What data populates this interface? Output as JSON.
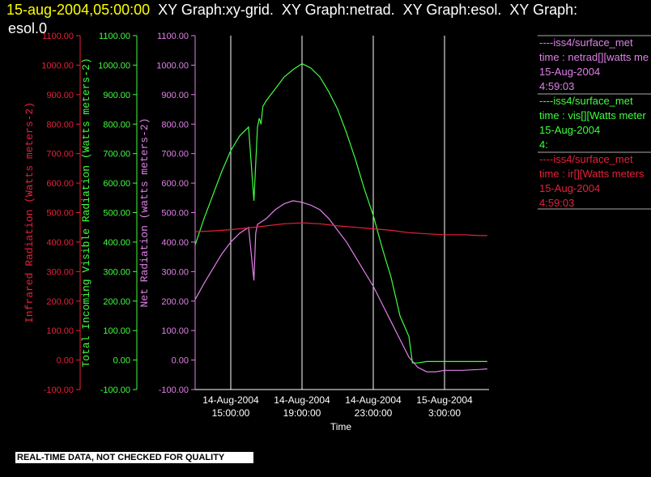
{
  "header": {
    "timestamp": "15-aug-2004,05:00:00",
    "line1_rest": "  XY Graph:xy-grid.  XY Graph:netrad.  XY Graph:esol.  XY Graph:",
    "line2": "esol.0"
  },
  "banner": "REAL-TIME DATA, NOT CHECKED FOR QUALITY",
  "colors": {
    "ir": "#e8203a",
    "vis": "#40ff40",
    "net": "#e080e8",
    "grid": "#ffffff",
    "axis_text": "#ffffff"
  },
  "legend": [
    {
      "line1": "----iss4/surface_met",
      "line2": "time : netrad[][watts me",
      "line3": "15-Aug-2004",
      "line4": "4:59:03",
      "color": "#e080e8"
    },
    {
      "line1": "----iss4/surface_met",
      "line2": "time : vis[][Watts meter",
      "line3": "15-Aug-2004",
      "line4": "4:",
      "color": "#40ff40"
    },
    {
      "line1": "----iss4/surface_met",
      "line2": "time : ir[][Watts meters",
      "line3": "15-Aug-2004",
      "line4": "4:59:03",
      "color": "#e8203a"
    }
  ],
  "chart_data": {
    "type": "line",
    "xlabel": "Time",
    "x_ticks": [
      {
        "line1": "14-Aug-2004",
        "line2": "15:00:00",
        "hour": 15
      },
      {
        "line1": "14-Aug-2004",
        "line2": "19:00:00",
        "hour": 19
      },
      {
        "line1": "14-Aug-2004",
        "line2": "23:00:00",
        "hour": 23
      },
      {
        "line1": "15-Aug-2004",
        "line2": "3:00:00",
        "hour": 27
      }
    ],
    "xlim_hours": [
      13.0,
      29.5
    ],
    "axes": [
      {
        "id": "ir",
        "label": "Infrared Radiation (Watts meters-2)",
        "ylim": [
          -100,
          1100
        ],
        "ticks": [
          "-100.00",
          "0.00",
          "100.00",
          "200.00",
          "300.00",
          "400.00",
          "500.00",
          "600.00",
          "700.00",
          "800.00",
          "900.00",
          "1000.00",
          "1100.00"
        ]
      },
      {
        "id": "vis",
        "label": "Total Incoming Visible Radiation (Watts meters-2)",
        "ylim": [
          -100,
          1100
        ],
        "ticks": [
          "-100.00",
          "0.00",
          "100.00",
          "200.00",
          "300.00",
          "400.00",
          "500.00",
          "600.00",
          "700.00",
          "800.00",
          "900.00",
          "1000.00",
          "1100.00"
        ]
      },
      {
        "id": "net",
        "label": "Net Radiation (watts meters-2)",
        "ylim": [
          -100,
          1100
        ],
        "ticks": [
          "-100.00",
          "0.00",
          "100.00",
          "200.00",
          "300.00",
          "400.00",
          "500.00",
          "600.00",
          "700.00",
          "800.00",
          "900.00",
          "1000.00",
          "1100.00"
        ]
      }
    ],
    "series": [
      {
        "name": "vis",
        "axis": "vis",
        "x": [
          13.0,
          13.5,
          14.0,
          14.5,
          15.0,
          15.5,
          16.0,
          16.3,
          16.5,
          16.6,
          16.7,
          16.8,
          17.0,
          17.5,
          18.0,
          18.5,
          19.0,
          19.5,
          20.0,
          20.5,
          21.0,
          21.5,
          22.0,
          22.5,
          23.0,
          23.5,
          24.0,
          24.5,
          25.0,
          25.2,
          25.5,
          26.0,
          27.0,
          28.0,
          29.0,
          29.4
        ],
        "y": [
          390,
          480,
          560,
          640,
          710,
          760,
          790,
          540,
          790,
          820,
          800,
          860,
          880,
          920,
          960,
          985,
          1005,
          990,
          960,
          910,
          850,
          770,
          680,
          580,
          490,
          380,
          280,
          150,
          80,
          -10,
          -10,
          -5,
          -5,
          -5,
          -5,
          -5
        ]
      },
      {
        "name": "net",
        "axis": "net",
        "x": [
          13.0,
          13.5,
          14.0,
          14.5,
          15.0,
          15.5,
          16.0,
          16.3,
          16.4,
          16.5,
          17.0,
          17.5,
          18.0,
          18.5,
          19.0,
          19.5,
          20.0,
          20.5,
          21.0,
          21.5,
          22.0,
          22.5,
          23.0,
          23.5,
          24.0,
          24.5,
          25.0,
          25.5,
          26.0,
          26.5,
          27.0,
          28.0,
          29.0,
          29.4
        ],
        "y": [
          205,
          260,
          310,
          360,
          400,
          430,
          450,
          270,
          430,
          460,
          480,
          510,
          530,
          540,
          535,
          525,
          510,
          480,
          440,
          400,
          350,
          300,
          250,
          190,
          130,
          70,
          10,
          -25,
          -40,
          -40,
          -35,
          -35,
          -32,
          -30
        ]
      },
      {
        "name": "ir",
        "axis": "ir",
        "x": [
          13.0,
          14.0,
          15.0,
          16.0,
          17.0,
          18.0,
          19.0,
          20.0,
          21.0,
          22.0,
          23.0,
          24.0,
          25.0,
          26.0,
          27.0,
          28.0,
          29.0,
          29.4
        ],
        "y": [
          435,
          438,
          442,
          448,
          455,
          462,
          465,
          462,
          455,
          450,
          445,
          440,
          432,
          428,
          425,
          425,
          422,
          422
        ]
      }
    ]
  }
}
